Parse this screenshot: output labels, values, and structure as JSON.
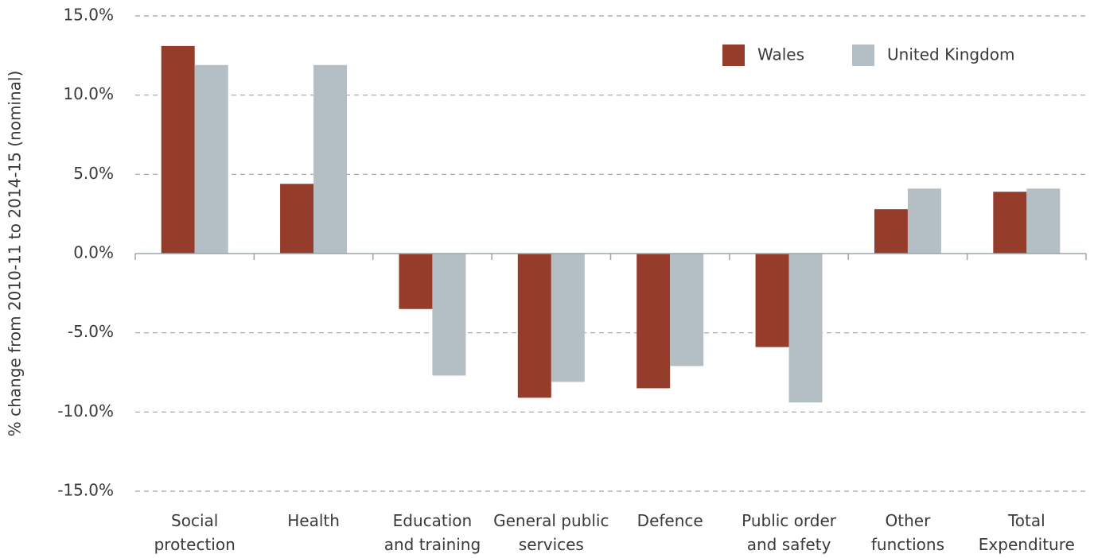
{
  "chart_data": {
    "type": "bar",
    "ylabel": "% change from 2010-11 to 2014-15 (nominal)",
    "categories": [
      [
        "Social",
        "protection"
      ],
      [
        "Health"
      ],
      [
        "Education",
        "and training"
      ],
      [
        "General public",
        "services"
      ],
      [
        "Defence"
      ],
      [
        "Public order",
        "and safety"
      ],
      [
        "Other",
        "functions"
      ],
      [
        "Total",
        "Expenditure"
      ]
    ],
    "series": [
      {
        "name": "Wales",
        "color": "#963c2b",
        "values": [
          13.1,
          4.4,
          -3.5,
          -9.1,
          -8.5,
          -5.9,
          2.8,
          3.9
        ]
      },
      {
        "name": "United Kingdom",
        "color": "#b3bfc4",
        "values": [
          11.9,
          11.9,
          -7.7,
          -8.1,
          -7.1,
          -9.4,
          4.1,
          4.1
        ]
      }
    ],
    "ylim": [
      -15,
      15
    ],
    "yticks": [
      {
        "value": -15,
        "label": "-15.0%"
      },
      {
        "value": -10,
        "label": "-10.0%"
      },
      {
        "value": -5,
        "label": "-5.0%"
      },
      {
        "value": 0,
        "label": "0.0%"
      },
      {
        "value": 5,
        "label": "5.0%"
      },
      {
        "value": 10,
        "label": "10.0%"
      },
      {
        "value": 15,
        "label": "15.0%"
      }
    ],
    "grid": true,
    "legend": "top-right"
  }
}
